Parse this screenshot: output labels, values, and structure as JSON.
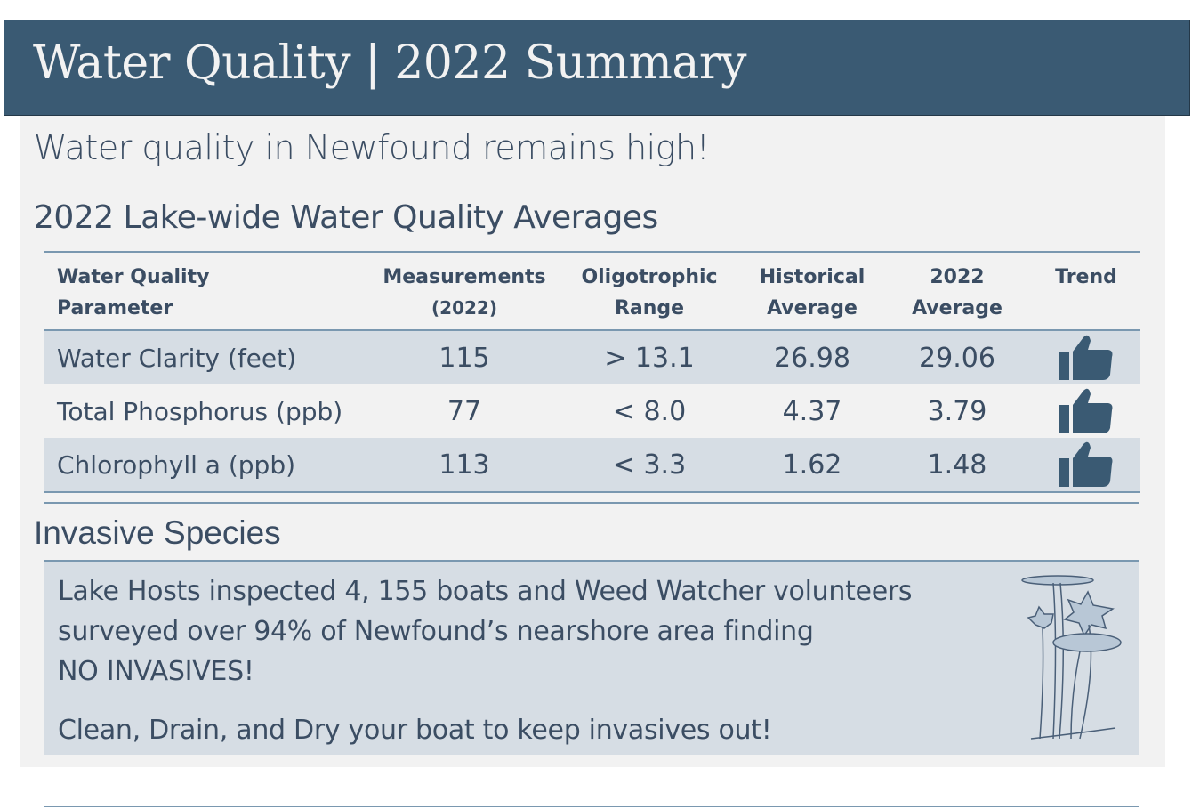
{
  "header": {
    "title": "Water Quality | 2022 Summary"
  },
  "subtitle": "Water quality in Newfound remains high!",
  "averages": {
    "heading": "2022 Lake-wide Water Quality Averages",
    "columns": [
      {
        "line1": "Water Quality",
        "line2": "Parameter"
      },
      {
        "line1": "Measurements",
        "line2": "(2022)"
      },
      {
        "line1": "Oligotrophic",
        "line2": "Range"
      },
      {
        "line1": "Historical",
        "line2": "Average"
      },
      {
        "line1": "2022",
        "line2": "Average"
      },
      {
        "line1": "Trend",
        "line2": ""
      }
    ],
    "rows": [
      {
        "parameter": "Water Clarity (feet)",
        "measurements": "115",
        "range": "> 13.1",
        "historical": "26.98",
        "avg2022": "29.06",
        "trend": "thumbs-up-icon"
      },
      {
        "parameter": "Total Phosphorus (ppb)",
        "measurements": "77",
        "range": "< 8.0",
        "historical": "4.37",
        "avg2022": "3.79",
        "trend": "thumbs-up-icon"
      },
      {
        "parameter": "Chlorophyll a (ppb)",
        "measurements": "113",
        "range": "< 3.3",
        "historical": "1.62",
        "avg2022": "1.48",
        "trend": "thumbs-up-icon"
      }
    ]
  },
  "invasive": {
    "heading": "Invasive Species",
    "line1": "Lake Hosts inspected 4, 155 boats and Weed Watcher volunteers",
    "line2": "surveyed over 94% of Newfound’s nearshore area finding",
    "line3": "NO INVASIVES!",
    "line4": "Clean, Drain, and Dry your boat to keep invasives out!",
    "illustration": "water-lily-drawing"
  },
  "colors": {
    "header": "#3a5a73",
    "text": "#3b4d63",
    "row": "#d6dde4",
    "panel": "#f2f2f2"
  }
}
